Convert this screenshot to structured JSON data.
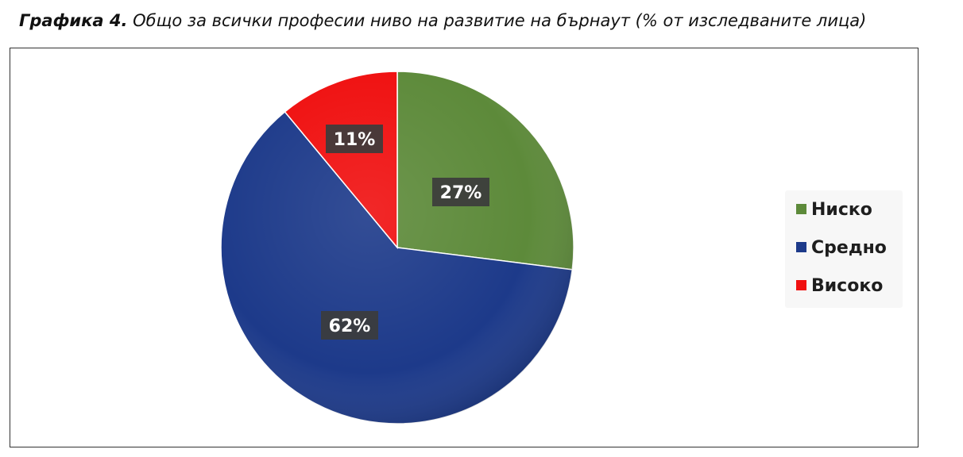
{
  "caption": {
    "lead": "Графика 4.",
    "text": " Общо за всички професии ниво на развитие на бърнаут (% от изследваните лица)"
  },
  "chart_data": {
    "type": "pie",
    "categories": [
      "Ниско",
      "Средно",
      "Високо"
    ],
    "values": [
      27,
      62,
      11
    ],
    "data_labels": [
      "27%",
      "62%",
      "11%"
    ],
    "colors": [
      "#5d8a3a",
      "#1d3a8a",
      "#f01010"
    ],
    "start_angle_deg": 0,
    "direction": "clockwise",
    "legend": {
      "placement": "right",
      "items": [
        "Ниско",
        "Средно",
        "Високо"
      ]
    }
  }
}
